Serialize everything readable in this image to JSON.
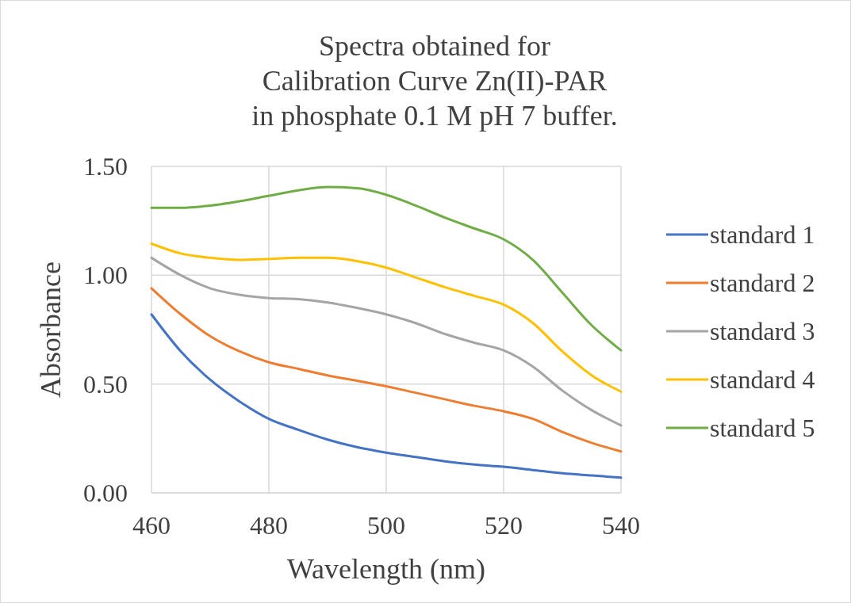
{
  "chart_data": {
    "type": "line",
    "title": "Spectra obtained for\nCalibration Curve Zn(II)-PAR\nin phosphate 0.1 M pH 7 buffer.",
    "xlabel": "Wavelength (nm)",
    "ylabel": "Absorbance",
    "x": [
      460,
      465,
      470,
      475,
      480,
      485,
      490,
      495,
      500,
      505,
      510,
      515,
      520,
      525,
      530,
      535,
      540
    ],
    "series": [
      {
        "name": "standard 1",
        "color": "#4472c4",
        "values": [
          0.82,
          0.65,
          0.52,
          0.42,
          0.34,
          0.29,
          0.245,
          0.21,
          0.185,
          0.165,
          0.145,
          0.13,
          0.12,
          0.105,
          0.09,
          0.08,
          0.07
        ]
      },
      {
        "name": "standard 2",
        "color": "#ed7d31",
        "values": [
          0.94,
          0.82,
          0.72,
          0.65,
          0.6,
          0.57,
          0.54,
          0.515,
          0.49,
          0.46,
          0.43,
          0.4,
          0.375,
          0.34,
          0.28,
          0.23,
          0.19
        ]
      },
      {
        "name": "standard 3",
        "color": "#a5a5a5",
        "values": [
          1.08,
          1.0,
          0.94,
          0.91,
          0.895,
          0.89,
          0.875,
          0.85,
          0.82,
          0.78,
          0.73,
          0.69,
          0.655,
          0.58,
          0.47,
          0.38,
          0.31
        ]
      },
      {
        "name": "standard 4",
        "color": "#ffc000",
        "values": [
          1.145,
          1.1,
          1.08,
          1.07,
          1.075,
          1.08,
          1.08,
          1.065,
          1.035,
          0.99,
          0.945,
          0.905,
          0.865,
          0.78,
          0.65,
          0.54,
          0.465
        ]
      },
      {
        "name": "standard 5",
        "color": "#70ad47",
        "values": [
          1.31,
          1.31,
          1.32,
          1.34,
          1.365,
          1.39,
          1.405,
          1.4,
          1.37,
          1.32,
          1.265,
          1.215,
          1.165,
          1.07,
          0.92,
          0.77,
          0.655
        ]
      }
    ],
    "xlim": [
      460,
      540
    ],
    "xticks": [
      460,
      480,
      500,
      520,
      540
    ],
    "ylim": [
      0,
      1.5
    ],
    "yticks": [
      {
        "value": 0,
        "label": "0.00"
      },
      {
        "value": 0.5,
        "label": "0.50"
      },
      {
        "value": 1,
        "label": "1.00"
      },
      {
        "value": 1.5,
        "label": "1.50"
      }
    ],
    "grid": true,
    "legend": "right",
    "marker": "none",
    "line_style": "solid"
  }
}
